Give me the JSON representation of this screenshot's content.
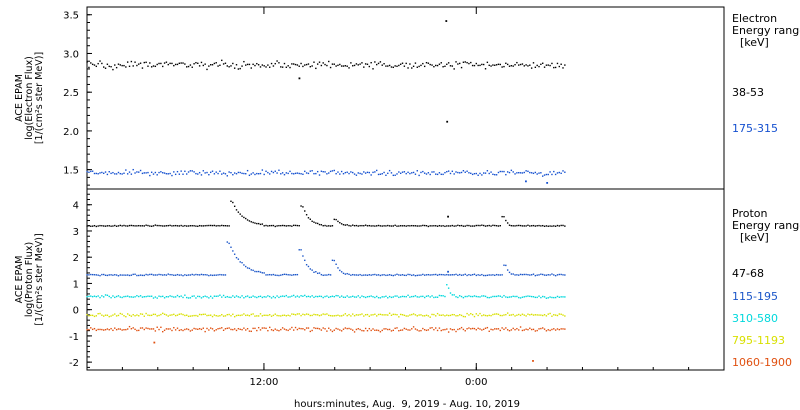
{
  "chart_data": [
    {
      "type": "scatter",
      "panel": "electron",
      "ylabel": [
        "ACE EPAM",
        "log(Electron Flux)",
        "[1/(cm²s ster MeV)]"
      ],
      "ylim": [
        1.25,
        3.6
      ],
      "yticks": [
        1.5,
        2.0,
        2.5,
        3.0,
        3.5
      ],
      "ytick_labels": [
        "1.5",
        "2.0",
        "2.5",
        "3.0",
        "3.5"
      ],
      "legend_title": [
        "Electron",
        "Energy ranges",
        "[keV]"
      ],
      "data_end_hours": 27.0,
      "series": [
        {
          "name": "38-53",
          "color": "#000000",
          "base": 2.85,
          "spread": 0.07,
          "outliers": [
            [
              20.3,
              3.42
            ],
            [
              20.35,
              2.12
            ],
            [
              12.0,
              2.68
            ]
          ]
        },
        {
          "name": "175-315",
          "color": "#1450d0",
          "base": 1.46,
          "spread": 0.05,
          "outliers": [
            [
              26.0,
              1.33
            ],
            [
              24.8,
              1.35
            ]
          ]
        }
      ]
    },
    {
      "type": "scatter",
      "panel": "proton",
      "ylabel": [
        "ACE EPAM",
        "log(Proton Flux)",
        "[1/(cm²s ster MeV)]"
      ],
      "ylim": [
        -2.3,
        4.6
      ],
      "yticks": [
        -2,
        -1,
        0,
        1,
        2,
        3,
        4
      ],
      "ytick_labels": [
        "-2",
        "-1",
        "0",
        "1",
        "2",
        "3",
        "4"
      ],
      "legend_title": [
        "Proton",
        "Energy ranges",
        "[keV]"
      ],
      "data_end_hours": 27.0,
      "series": [
        {
          "name": "47-68",
          "color": "#000000",
          "base": 3.2,
          "spread": 0.03,
          "events": [
            [
              8.2,
              0.95,
              0.5
            ],
            [
              12.2,
              0.75,
              0.3
            ],
            [
              14.1,
              0.25,
              0.2
            ],
            [
              23.6,
              0.35,
              0.1
            ]
          ],
          "outliers": [
            [
              20.4,
              3.55
            ]
          ]
        },
        {
          "name": "115-195",
          "color": "#1a55c8",
          "base": 1.33,
          "spread": 0.04,
          "events": [
            [
              8.0,
              1.25,
              0.6
            ],
            [
              12.1,
              0.95,
              0.3
            ],
            [
              14.0,
              0.55,
              0.2
            ],
            [
              23.7,
              0.35,
              0.1
            ]
          ],
          "outliers": [
            [
              20.4,
              1.45
            ]
          ]
        },
        {
          "name": "310-580",
          "color": "#00d8dc",
          "base": 0.5,
          "spread": 0.07,
          "events": [
            [
              20.4,
              0.45,
              0.1
            ]
          ],
          "outliers": []
        },
        {
          "name": "795-1193",
          "color": "#d8e000",
          "base": -0.2,
          "spread": 0.09,
          "events": [],
          "outliers": []
        },
        {
          "name": "1060-1900",
          "color": "#e05010",
          "base": -0.75,
          "spread": 0.12,
          "events": [],
          "outliers": [
            [
              3.8,
              -1.25
            ],
            [
              25.2,
              -1.95
            ]
          ]
        }
      ]
    }
  ],
  "x_axis": {
    "range_hours": [
      0,
      36
    ],
    "major_ticks": [
      {
        "hours": 10,
        "label": "12:00"
      },
      {
        "hours": 22,
        "label": "0:00"
      }
    ],
    "minor_tick_step_hours": 2,
    "caption": "hours:minutes, Aug.  9, 2019 - Aug. 10, 2019"
  }
}
